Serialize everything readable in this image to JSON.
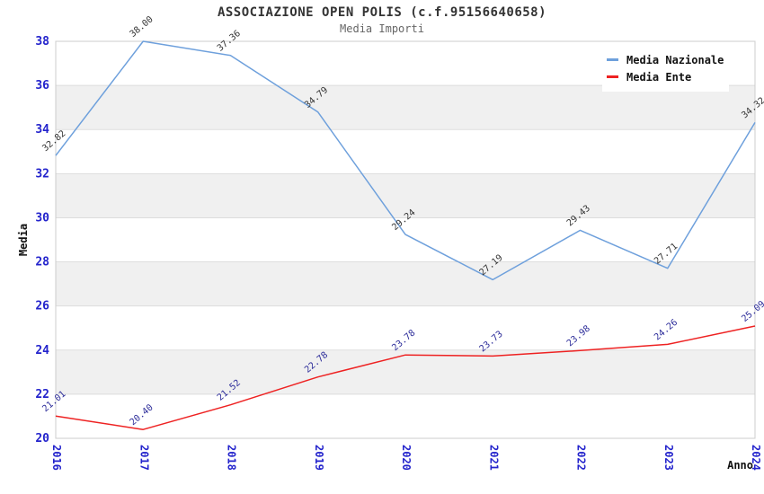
{
  "header": {
    "title": "ASSOCIAZIONE OPEN POLIS (c.f.95156640658)",
    "subtitle": "Media Importi"
  },
  "chart_data": {
    "type": "line",
    "x": [
      2016,
      2017,
      2018,
      2019,
      2020,
      2021,
      2022,
      2023,
      2024
    ],
    "series": [
      {
        "name": "Media Nazionale",
        "color": "#6EA0DC",
        "label_color": "#333333",
        "values": [
          32.82,
          38.0,
          37.36,
          34.79,
          29.24,
          27.19,
          29.43,
          27.71,
          34.32
        ]
      },
      {
        "name": "Media Ente",
        "color": "#EE2222",
        "label_color": "#2B2B99",
        "values": [
          21.01,
          20.4,
          21.52,
          22.78,
          23.78,
          23.73,
          23.98,
          24.26,
          25.09
        ]
      }
    ],
    "xlabel": "Anno",
    "ylabel": "Media",
    "ylim": [
      20,
      38
    ],
    "ytick_step": 2,
    "legend_position": "top-right",
    "grid": "horizontal-gridlines-with-alternating-bands",
    "band_color": "#f0f0f0",
    "gridline_color": "#dddddd",
    "plot_border_color": "#cccccc",
    "tick_label_color": "#2323CC",
    "axis_title_color": "#111111",
    "data_label_format": "2-decimals"
  }
}
